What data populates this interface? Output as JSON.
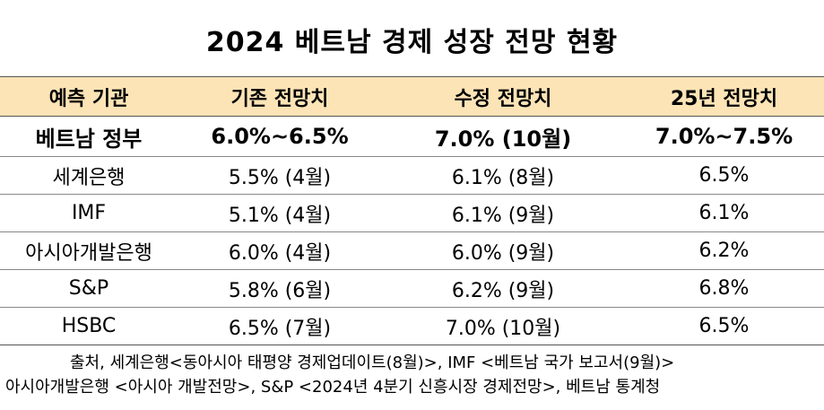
{
  "title": "2024 베트남 경제 성장 전망 현황",
  "headers": [
    "예측 기관",
    "기존 전망치",
    "수정 전망치",
    "25년 전망치"
  ],
  "rows": [
    [
      "베트남 정부",
      "6.0%~6.5%",
      "7.0% (10월)",
      "7.0%~7.5%"
    ],
    [
      "세계은행",
      "5.5% (4월)",
      "6.1% (8월)",
      "6.5%"
    ],
    [
      "IMF",
      "5.1% (4월)",
      "6.1% (9월)",
      "6.1%"
    ],
    [
      "아시아개발은행",
      "6.0% (4월)",
      "6.0% (9월)",
      "6.2%"
    ],
    [
      "S&P",
      "5.8% (6월)",
      "6.2% (9월)",
      "6.8%"
    ],
    [
      "HSBC",
      "6.5% (7월)",
      "7.0% (10월)",
      "6.5%"
    ]
  ],
  "source": {
    "line1": "출처, 세계은행<동아시아 태평양 경제업데이트(8월)>, IMF <베트남 국가 보고서(9월)>",
    "line2": "아시아개발은행 <아시아 개발전망>, S&P <2024년 4분기 신흥시장 경제전망>, 베트남 통계청"
  }
}
